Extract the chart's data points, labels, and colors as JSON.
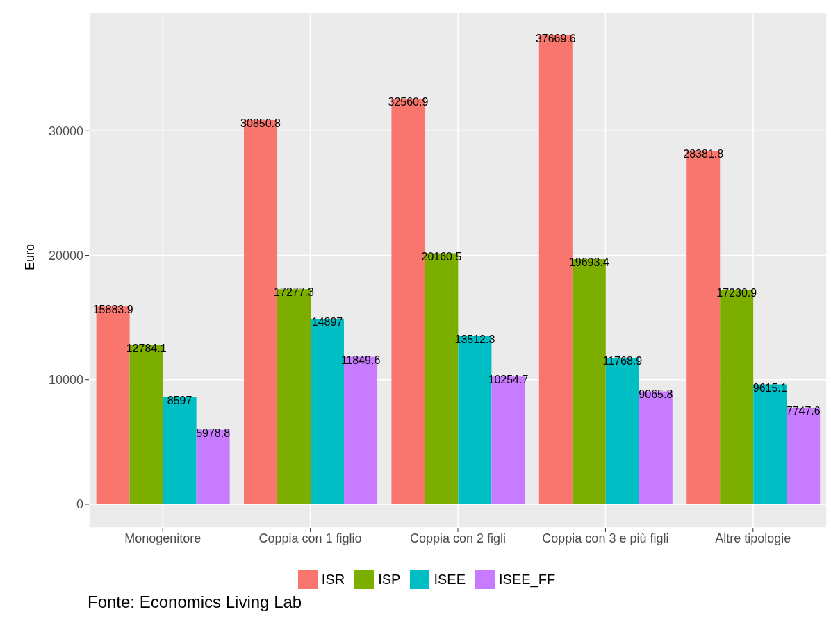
{
  "chart_data": {
    "type": "bar",
    "ylabel": "Euro",
    "categories": [
      "Monogenitore",
      "Coppia con 1 figlio",
      "Coppia con 2 figli",
      "Coppia con 3 e più figli",
      "Altre tipologie"
    ],
    "series": [
      {
        "name": "ISR",
        "color": "#f8766d",
        "values": [
          15883.9,
          30850.8,
          32560.9,
          37669.6,
          28381.8
        ]
      },
      {
        "name": "ISP",
        "color": "#7cae00",
        "values": [
          12784.1,
          17277.3,
          20160.5,
          19693.4,
          17230.9
        ]
      },
      {
        "name": "ISEE",
        "color": "#00bfc4",
        "values": [
          8597,
          14897,
          13512.3,
          11768.9,
          9615.1
        ]
      },
      {
        "name": "ISEE_FF",
        "color": "#c77cff",
        "values": [
          5978.8,
          11849.6,
          10254.7,
          9065.8,
          7747.6
        ]
      }
    ],
    "ylim": [
      -1900,
      39500
    ],
    "yticks": [
      0,
      10000,
      20000,
      30000
    ],
    "grid": true,
    "legend": "bottom",
    "data_labels": true,
    "annotations": [
      "Fonte: Economics Living Lab"
    ]
  }
}
